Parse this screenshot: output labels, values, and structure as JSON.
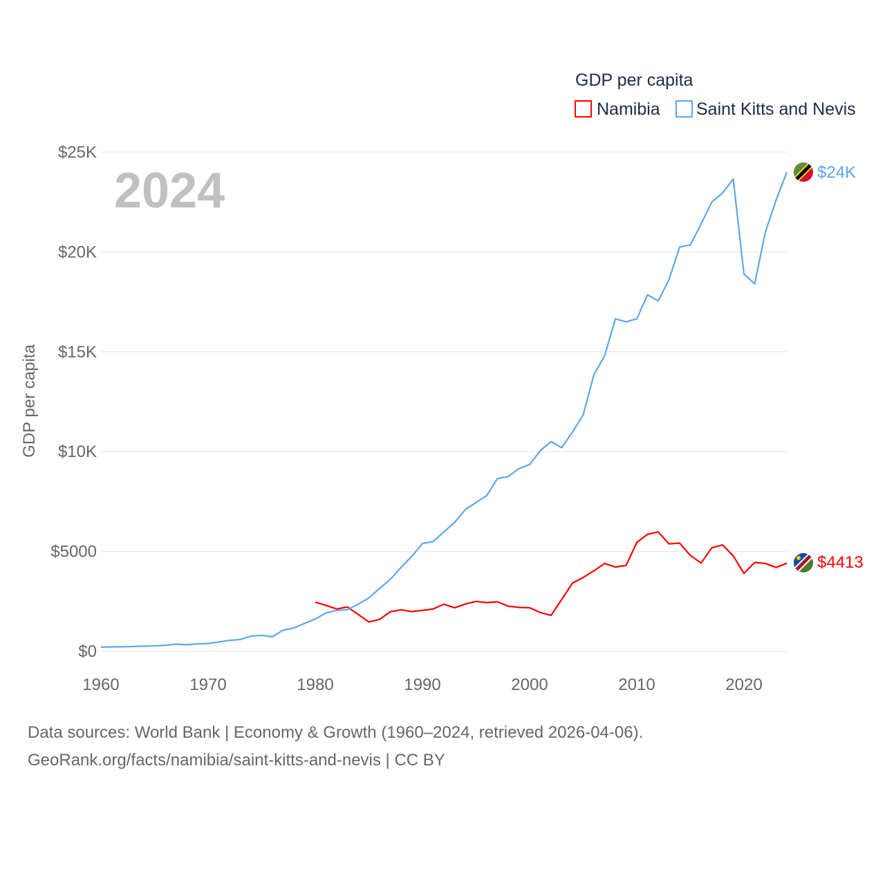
{
  "chart_data": {
    "type": "line",
    "title": "GDP per capita",
    "year_label": "2024",
    "xlabel": "",
    "ylabel": "GDP per capita",
    "xlim": [
      1960,
      2024
    ],
    "ylim": [
      0,
      25000
    ],
    "x_ticks": [
      1960,
      1970,
      1980,
      1990,
      2000,
      2010,
      2020
    ],
    "x_tick_labels": [
      "1960",
      "1970",
      "1980",
      "1990",
      "2000",
      "2010",
      "2020"
    ],
    "y_ticks": [
      0,
      5000,
      10000,
      15000,
      20000,
      25000
    ],
    "y_tick_labels": [
      "$0",
      "$5000",
      "$10K",
      "$15K",
      "$20K",
      "$25K"
    ],
    "grid": true,
    "legend_placement": "top-right",
    "series": [
      {
        "name": "Namibia",
        "color": "#ff0000",
        "end_label": "$4413",
        "start_year": 1980,
        "values": [
          2460,
          2300,
          2120,
          2220,
          1850,
          1470,
          1600,
          1980,
          2080,
          1990,
          2050,
          2120,
          2360,
          2180,
          2370,
          2500,
          2440,
          2480,
          2260,
          2200,
          2180,
          1940,
          1800,
          2600,
          3420,
          3700,
          4030,
          4400,
          4220,
          4300,
          5450,
          5860,
          5980,
          5380,
          5420,
          4800,
          4420,
          5180,
          5330,
          4780,
          3900,
          4450,
          4400,
          4200,
          4413
        ]
      },
      {
        "name": "Saint Kitts and Nevis",
        "color": "#5da5ec",
        "end_label": "$24K",
        "start_year": 1960,
        "values": [
          210,
          220,
          230,
          240,
          260,
          270,
          300,
          360,
          330,
          370,
          390,
          470,
          550,
          590,
          760,
          800,
          730,
          1060,
          1170,
          1400,
          1620,
          1920,
          2050,
          2080,
          2360,
          2670,
          3150,
          3600,
          4200,
          4750,
          5400,
          5500,
          5980,
          6450,
          7100,
          7450,
          7800,
          8650,
          8750,
          9150,
          9350,
          10050,
          10500,
          10200,
          10980,
          11850,
          13850,
          14800,
          16650,
          16500,
          16650,
          17850,
          17550,
          18600,
          20250,
          20350,
          21400,
          22500,
          22950,
          23650,
          18900,
          18400,
          21000,
          22600,
          24000
        ]
      }
    ]
  },
  "footer": {
    "line1": "Data sources: World Bank | Economy & Growth (1960–2024, retrieved 2026-04-06).",
    "line2": "GeoRank.org/facts/namibia/saint-kitts-and-nevis | CC BY"
  }
}
